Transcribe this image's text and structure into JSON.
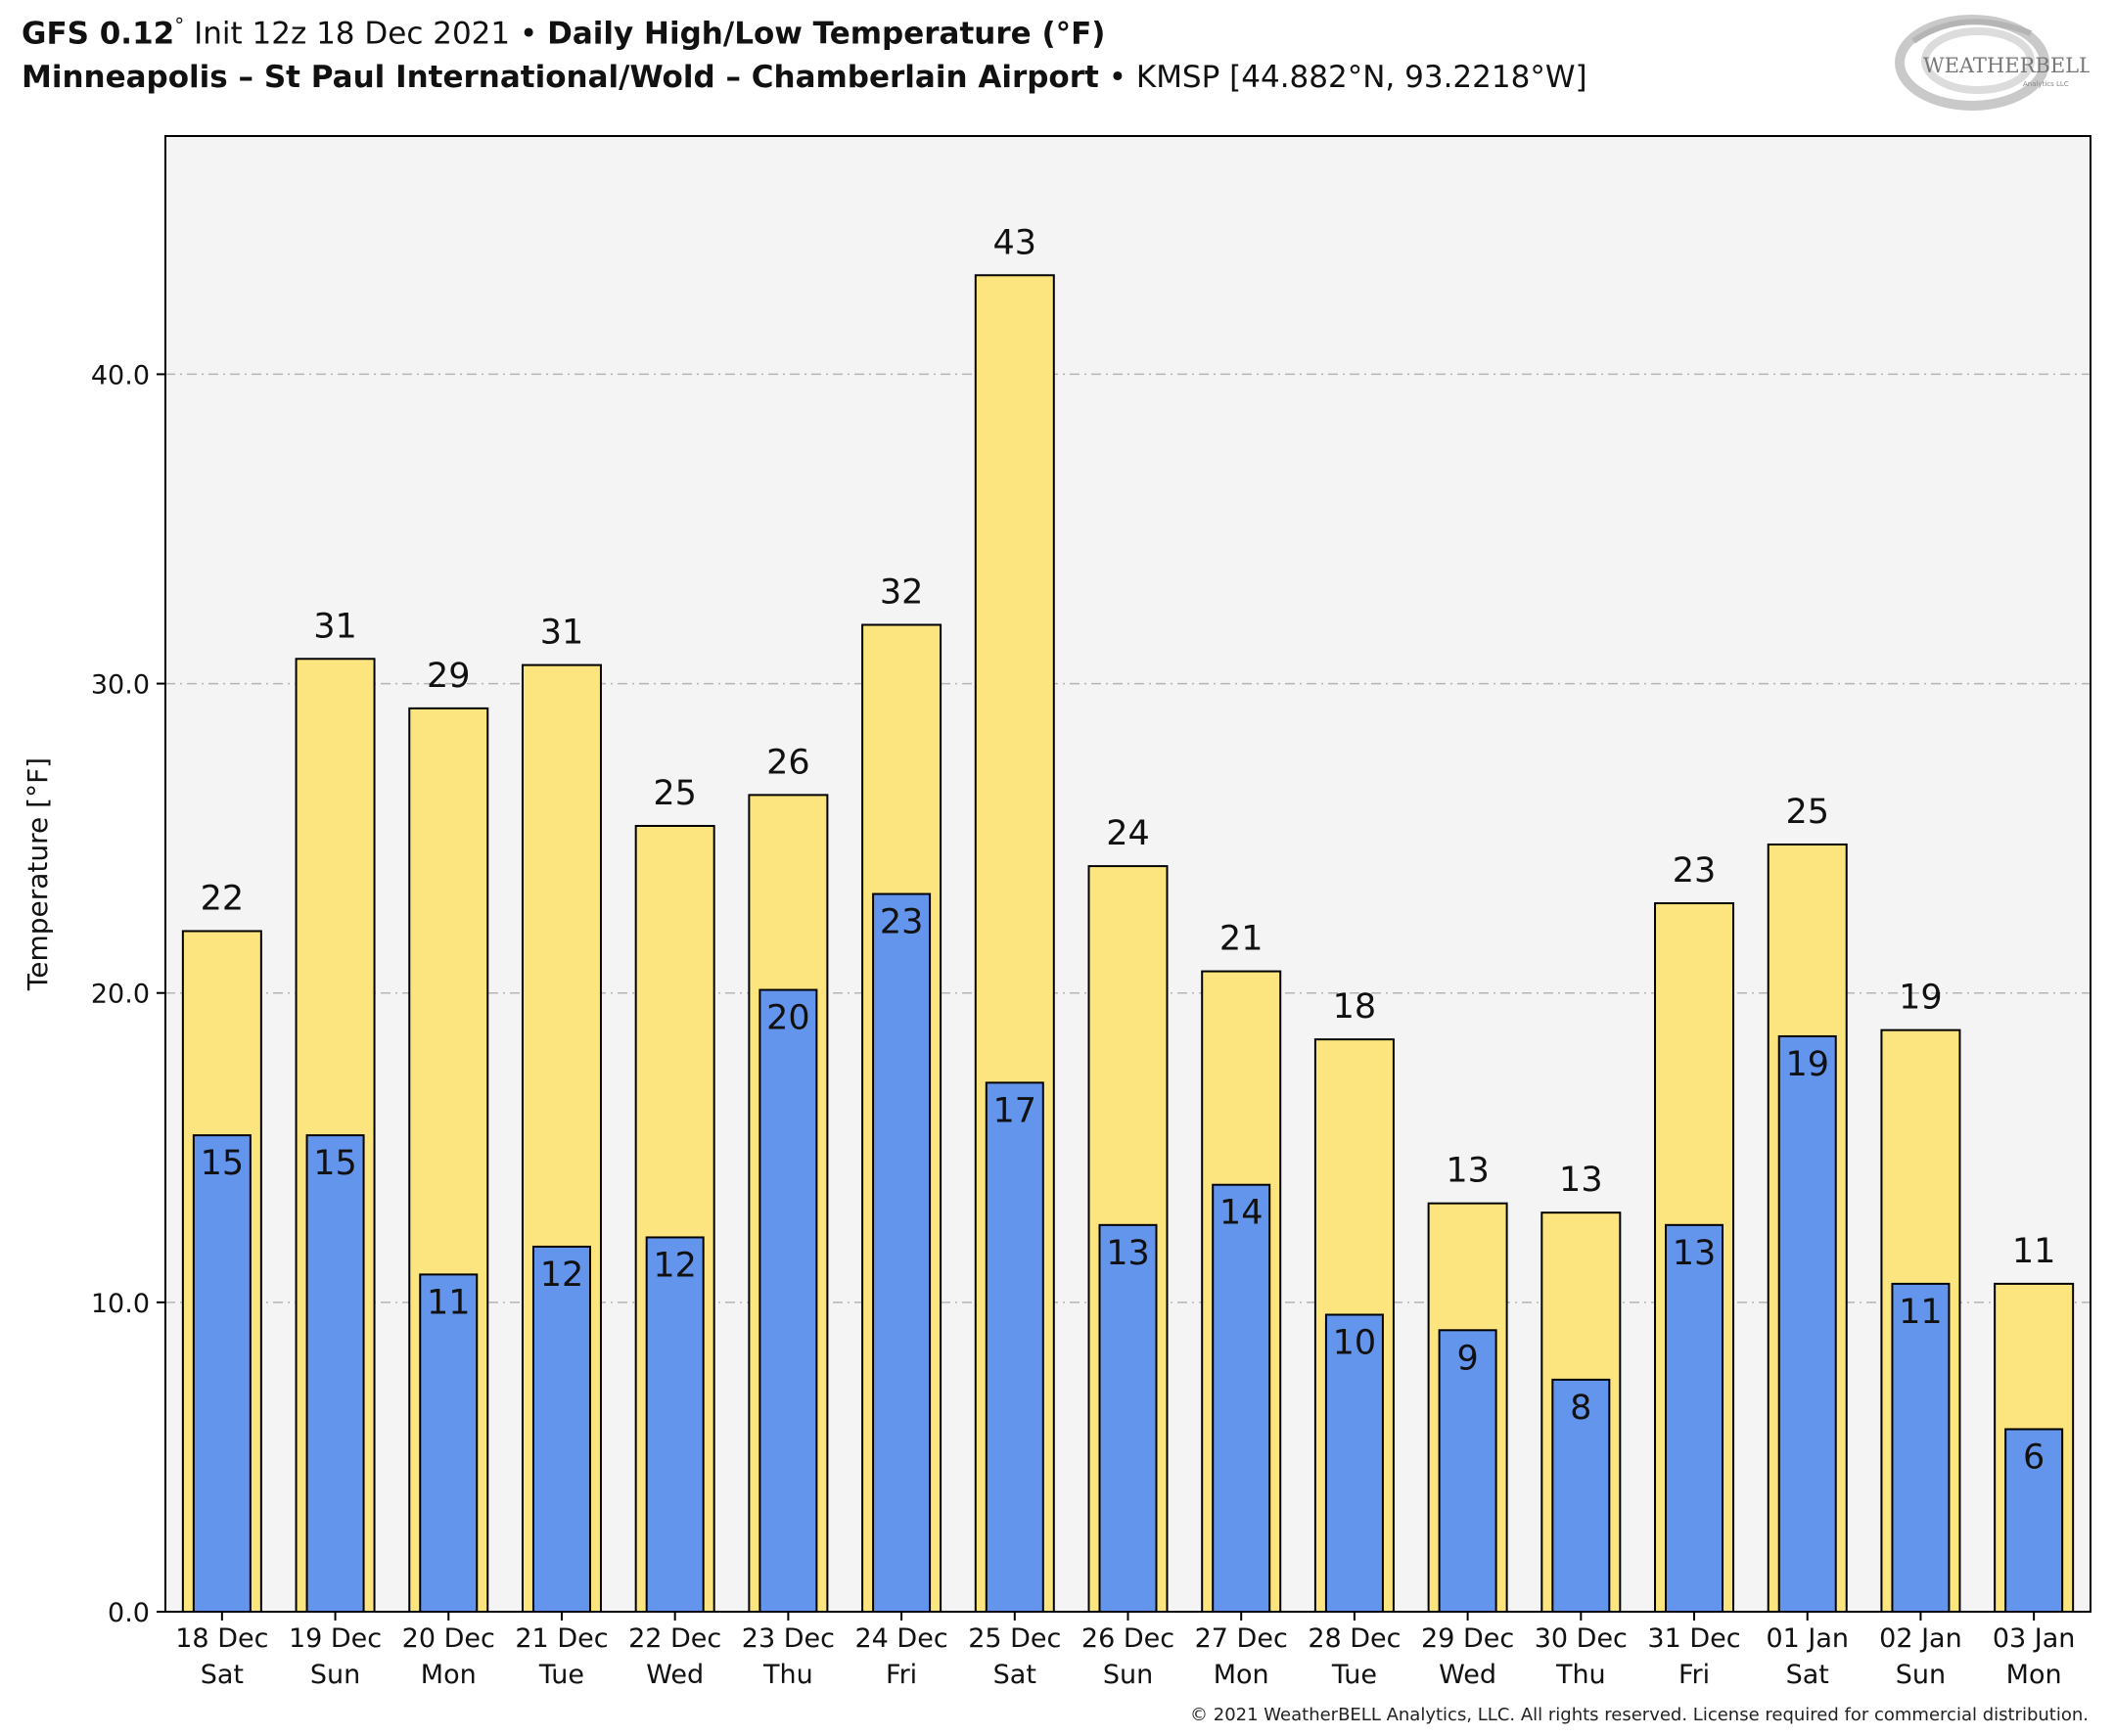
{
  "header": {
    "model": "GFS 0.12",
    "init": "Init 12z 18 Dec 2021",
    "sep": "•",
    "title": "Daily High/Low Temperature (°F)",
    "station": "Minneapolis – St Paul International/Wold – Chamberlain Airport",
    "station_id": "KMSP [44.882°N, 93.2218°W]"
  },
  "logo": {
    "text_main": "WEATHERBELL",
    "text_sub": "Analytics LLC"
  },
  "copyright": "© 2021 WeatherBELL Analytics, LLC. All rights reserved. License required for commercial distribution.",
  "chart_data": {
    "type": "bar",
    "ylabel": "Temperature [°F]",
    "ylim": [
      0,
      47.7
    ],
    "yticks": [
      "0.0",
      "10.0",
      "20.0",
      "30.0",
      "40.0"
    ],
    "grid": "horizontal dashed",
    "categories": [
      [
        "18 Dec",
        "Sat"
      ],
      [
        "19 Dec",
        "Sun"
      ],
      [
        "20 Dec",
        "Mon"
      ],
      [
        "21 Dec",
        "Tue"
      ],
      [
        "22 Dec",
        "Wed"
      ],
      [
        "23 Dec",
        "Thu"
      ],
      [
        "24 Dec",
        "Fri"
      ],
      [
        "25 Dec",
        "Sat"
      ],
      [
        "26 Dec",
        "Sun"
      ],
      [
        "27 Dec",
        "Mon"
      ],
      [
        "28 Dec",
        "Tue"
      ],
      [
        "29 Dec",
        "Wed"
      ],
      [
        "30 Dec",
        "Thu"
      ],
      [
        "31 Dec",
        "Fri"
      ],
      [
        "01 Jan",
        "Sat"
      ],
      [
        "02 Jan",
        "Sun"
      ],
      [
        "03 Jan",
        "Mon"
      ]
    ],
    "series": [
      {
        "color": "#fce57e",
        "values": [
          22.0,
          30.8,
          29.2,
          30.6,
          25.4,
          26.4,
          31.9,
          43.2,
          24.1,
          20.7,
          18.5,
          13.2,
          12.9,
          22.9,
          24.8,
          18.8,
          10.6
        ],
        "labels": [
          "22",
          "31",
          "29",
          "31",
          "25",
          "26",
          "32",
          "43",
          "24",
          "21",
          "18",
          "13",
          "13",
          "23",
          "25",
          "19",
          "11"
        ]
      },
      {
        "color": "#6495ed",
        "values": [
          15.4,
          15.4,
          10.9,
          11.8,
          12.1,
          20.1,
          23.2,
          17.1,
          12.5,
          13.8,
          9.6,
          9.1,
          7.5,
          12.5,
          18.6,
          10.6,
          5.9
        ],
        "labels": [
          "15",
          "15",
          "11",
          "12",
          "12",
          "20",
          "23",
          "17",
          "13",
          "14",
          "10",
          "9",
          "8",
          "13",
          "19",
          "11",
          "6"
        ]
      }
    ]
  }
}
